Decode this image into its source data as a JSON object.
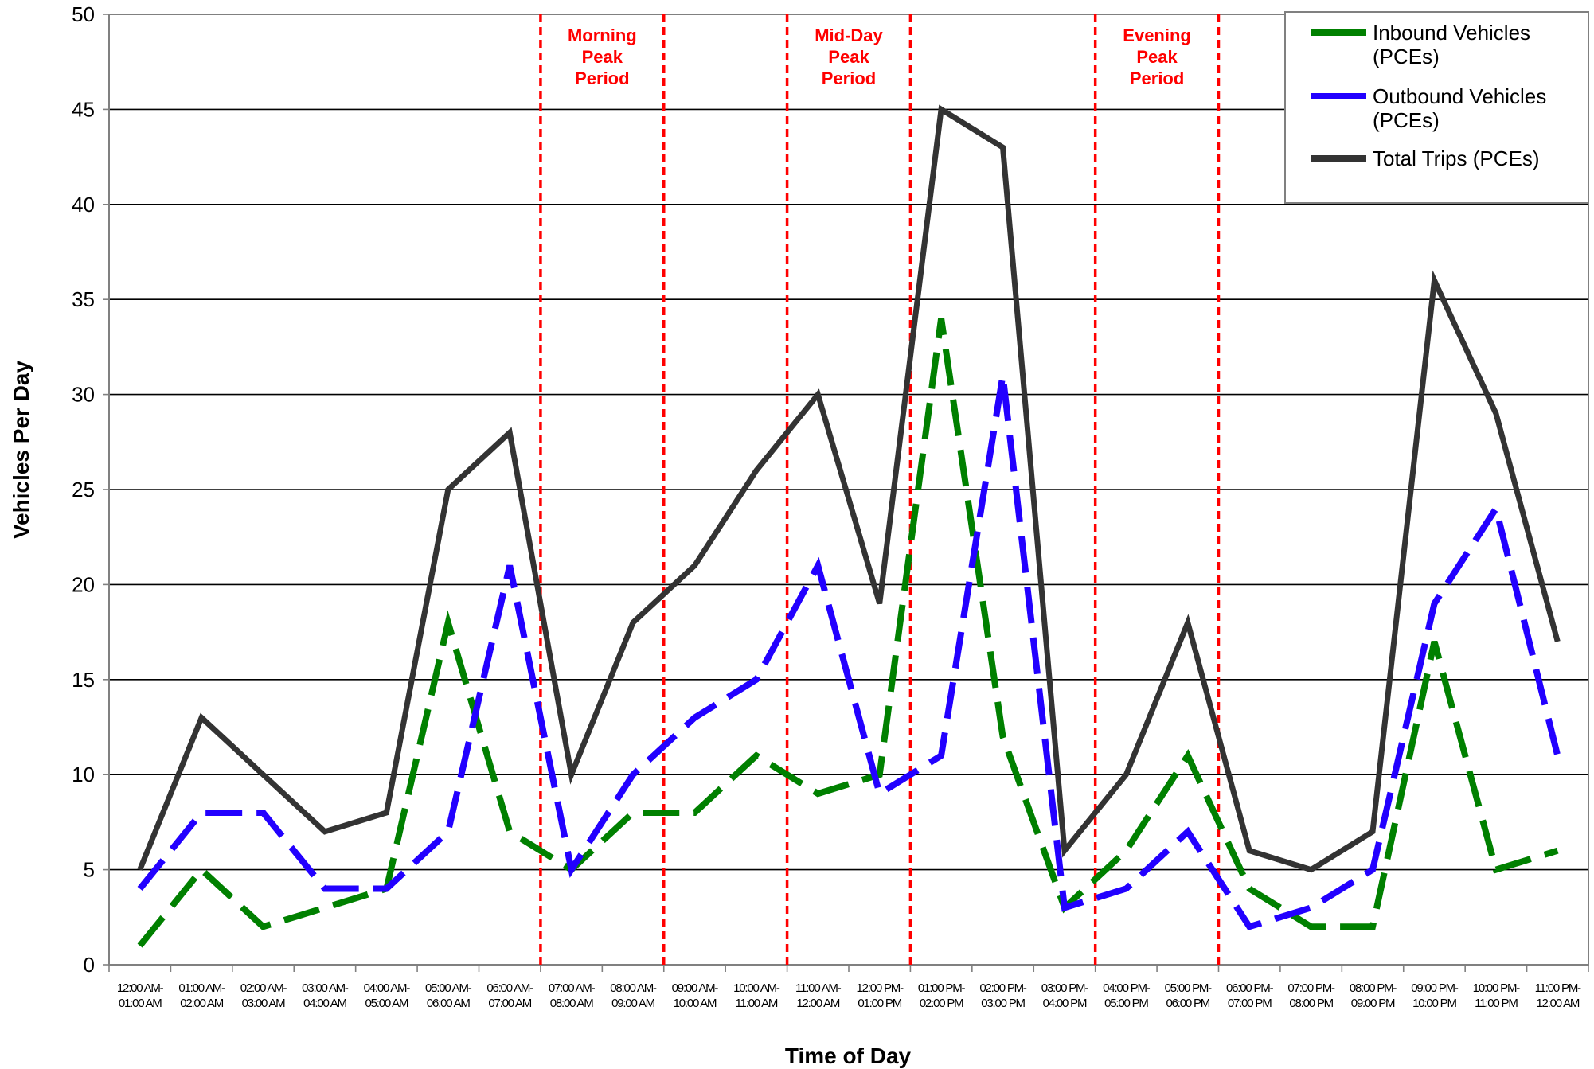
{
  "chart_data": {
    "type": "line",
    "xlabel": "Time of Day",
    "ylabel": "Vehicles Per Day",
    "ylim": [
      0,
      50
    ],
    "yticks": [
      0,
      5,
      10,
      15,
      20,
      25,
      30,
      35,
      40,
      45,
      50
    ],
    "grid": true,
    "legend_position": "top-right",
    "categories": [
      [
        "12:00 AM-",
        "01:00 AM"
      ],
      [
        "01:00 AM-",
        "02:00 AM"
      ],
      [
        "02:00 AM-",
        "03:00 AM"
      ],
      [
        "03:00 AM-",
        "04:00 AM"
      ],
      [
        "04:00 AM-",
        "05:00 AM"
      ],
      [
        "05:00 AM-",
        "06:00 AM"
      ],
      [
        "06:00 AM-",
        "07:00 AM"
      ],
      [
        "07:00 AM-",
        "08:00 AM"
      ],
      [
        "08:00 AM-",
        "09:00 AM"
      ],
      [
        "09:00 AM-",
        "10:00 AM"
      ],
      [
        "10:00 AM-",
        "11:00 AM"
      ],
      [
        "11:00 AM-",
        "12:00 AM"
      ],
      [
        "12:00 PM-",
        "01:00 PM"
      ],
      [
        "01:00 PM-",
        "02:00 PM"
      ],
      [
        "02:00 PM-",
        "03:00 PM"
      ],
      [
        "03:00 PM-",
        "04:00 PM"
      ],
      [
        "04:00 PM-",
        "05:00 PM"
      ],
      [
        "05:00 PM-",
        "06:00 PM"
      ],
      [
        "06:00 PM-",
        "07:00 PM"
      ],
      [
        "07:00 PM-",
        "08:00 PM"
      ],
      [
        "08:00 PM-",
        "09:00 PM"
      ],
      [
        "09:00 PM-",
        "10:00 PM"
      ],
      [
        "10:00 PM-",
        "11:00 PM"
      ],
      [
        "11:00 PM-",
        "12:00 AM"
      ]
    ],
    "series": [
      {
        "name": "Inbound Vehicles (PCEs)",
        "color": "#008000",
        "style": "dashed",
        "values": [
          1,
          5,
          2,
          3,
          4,
          18,
          7,
          5,
          8,
          8,
          11,
          9,
          10,
          34,
          12,
          3,
          6,
          11,
          4,
          2,
          2,
          17,
          5,
          6
        ]
      },
      {
        "name": "Outbound Vehicles (PCEs)",
        "color": "#2200ff",
        "style": "dashed",
        "values": [
          4,
          8,
          8,
          4,
          4,
          7,
          21,
          5,
          10,
          13,
          15,
          21,
          9,
          11,
          31,
          3,
          4,
          7,
          2,
          3,
          5,
          19,
          24,
          11
        ]
      },
      {
        "name": "Total Trips (PCEs)",
        "color": "#333333",
        "style": "solid",
        "values": [
          5,
          13,
          10,
          7,
          8,
          25,
          28,
          10,
          18,
          21,
          26,
          30,
          19,
          45,
          43,
          6,
          10,
          18,
          6,
          5,
          7,
          36,
          29,
          17
        ]
      }
    ],
    "peak_periods": [
      {
        "label": [
          "Morning",
          "Peak",
          "Period"
        ],
        "start_index": 7,
        "end_index": 9,
        "color": "#ff0000"
      },
      {
        "label": [
          "Mid-Day",
          "Peak",
          "Period"
        ],
        "start_index": 11,
        "end_index": 13,
        "color": "#ff0000"
      },
      {
        "label": [
          "Evening",
          "Peak",
          "Period"
        ],
        "start_index": 16,
        "end_index": 18,
        "color": "#ff0000"
      }
    ],
    "legend": [
      {
        "label": [
          "Inbound Vehicles",
          "(PCEs)"
        ],
        "color": "#008000"
      },
      {
        "label": [
          "Outbound Vehicles",
          "(PCEs)"
        ],
        "color": "#2200ff"
      },
      {
        "label": [
          "Total Trips (PCEs)"
        ],
        "color": "#333333"
      }
    ]
  }
}
